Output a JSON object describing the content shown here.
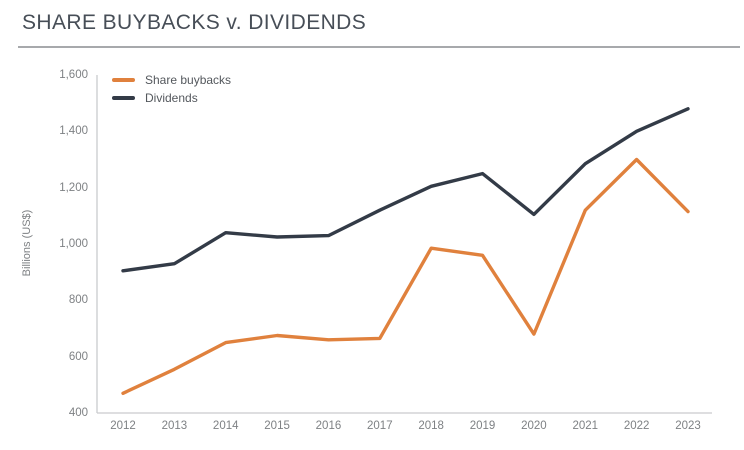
{
  "header": {
    "title": "SHARE BUYBACKS v. DIVIDENDS"
  },
  "colors": {
    "buybacks_line": "#E0813D",
    "dividends_line": "#333B47",
    "axis_line": "#C9CBCE",
    "tick_text": "#7E8184",
    "title_text": "#474E57",
    "title_rule": "#A7A9AC"
  },
  "chart_data": {
    "type": "line",
    "title": "SHARE BUYBACKS v. DIVIDENDS",
    "xlabel": "",
    "ylabel": "Billions (US$)",
    "x": [
      2012,
      2013,
      2014,
      2015,
      2016,
      2017,
      2018,
      2019,
      2020,
      2021,
      2022,
      2023
    ],
    "series": [
      {
        "name": "Share buybacks",
        "color": "#E0813D",
        "values": [
          470,
          555,
          650,
          675,
          660,
          665,
          985,
          960,
          680,
          1120,
          1300,
          1115
        ]
      },
      {
        "name": "Dividends",
        "color": "#333B47",
        "values": [
          905,
          930,
          1040,
          1025,
          1030,
          1120,
          1205,
          1250,
          1105,
          1285,
          1400,
          1480
        ]
      }
    ],
    "ylim": [
      400,
      1600
    ],
    "yticks": [
      400,
      600,
      800,
      1000,
      1200,
      1400,
      1600
    ],
    "grid": false,
    "legend_position": "top-left"
  }
}
